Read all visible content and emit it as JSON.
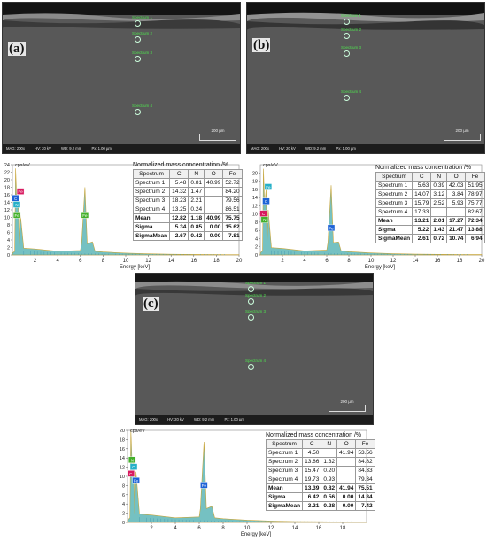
{
  "panels": [
    {
      "label": "(a)",
      "sem_info": [
        "MAG: 200x",
        "HV: 20 kV",
        "WD: 9.2 mm",
        "Px: 1.00 µm"
      ],
      "scale_bar": "200 µm",
      "spectra": [
        "Spectrum 1",
        "Spectrum 2",
        "Spectrum 3",
        "Spectrum 4"
      ],
      "table": {
        "caption": "Normalized mass concentration /%",
        "headers": [
          "Spectrum",
          "C",
          "N",
          "O",
          "Fe"
        ],
        "rows": [
          [
            "Spectrum 1",
            "5.48",
            "0.81",
            "40.99",
            "52.72"
          ],
          [
            "Spectrum 2",
            "14.32",
            "1.47",
            "",
            "84.20"
          ],
          [
            "Spectrum 3",
            "18.23",
            "2.21",
            "",
            "79.56"
          ],
          [
            "Spectrum 4",
            "13.25",
            "0.24",
            "",
            "86.51"
          ]
        ],
        "stats": [
          [
            "Mean",
            "12.82",
            "1.18",
            "40.99",
            "75.75"
          ],
          [
            "Sigma",
            "5.34",
            "0.85",
            "0.00",
            "15.62"
          ],
          [
            "SigmaMean",
            "2.67",
            "0.42",
            "0.00",
            "7.81"
          ]
        ]
      }
    },
    {
      "label": "(b)",
      "sem_info": [
        "MAG: 200x",
        "HV: 20 kV",
        "WD: 9.2 mm",
        "Px: 1.00 µm"
      ],
      "scale_bar": "200 µm",
      "spectra": [
        "Spectrum 1",
        "Spectrum 2",
        "Spectrum 3",
        "Spectrum 4"
      ],
      "table": {
        "caption": "Normalized mass concentration /%",
        "headers": [
          "Spectrum",
          "C",
          "N",
          "O",
          "Fe"
        ],
        "rows": [
          [
            "Spectrum 1",
            "5.63",
            "0.39",
            "42.03",
            "51.95"
          ],
          [
            "Spectrum 2",
            "14.07",
            "3.12",
            "3.84",
            "78.97"
          ],
          [
            "Spectrum 3",
            "15.79",
            "2.52",
            "5.93",
            "75.77"
          ],
          [
            "Spectrum 4",
            "17.33",
            "",
            "",
            "82.67"
          ]
        ],
        "stats": [
          [
            "Mean",
            "13.21",
            "2.01",
            "17.27",
            "72.34"
          ],
          [
            "Sigma",
            "5.22",
            "1.43",
            "21.47",
            "13.88"
          ],
          [
            "SigmaMean",
            "2.61",
            "0.72",
            "10.74",
            "6.94"
          ]
        ]
      }
    },
    {
      "label": "(c)",
      "sem_info": [
        "MAG: 200x",
        "HV: 20 kV",
        "WD: 9.2 mm",
        "Px: 1.00 µm"
      ],
      "scale_bar": "200 µm",
      "spectra": [
        "Spectrum 1",
        "Spectrum 2",
        "Spectrum 3",
        "Spectrum 4"
      ],
      "table": {
        "caption": "Normalized mass concentration /%",
        "headers": [
          "Spectrum",
          "C",
          "N",
          "O",
          "Fe"
        ],
        "rows": [
          [
            "Spectrum 1",
            "4.50",
            "",
            "41.94",
            "53.56"
          ],
          [
            "Spectrum 2",
            "13.86",
            "1.32",
            "",
            "84.82"
          ],
          [
            "Spectrum 3",
            "15.47",
            "0.20",
            "",
            "84.33"
          ],
          [
            "Spectrum 4",
            "19.73",
            "0.93",
            "",
            "79.34"
          ]
        ],
        "stats": [
          [
            "Mean",
            "13.39",
            "0.82",
            "41.94",
            "75.51"
          ],
          [
            "Sigma",
            "6.42",
            "0.56",
            "0.00",
            "14.84"
          ],
          [
            "SigmaMean",
            "3.21",
            "0.28",
            "0.00",
            "7.42"
          ]
        ]
      }
    }
  ],
  "chart_data": [
    {
      "type": "area",
      "panel": "(a)",
      "ylabel": "cps/eV",
      "xlabel": "Energy [keV]",
      "xlim": [
        0,
        20
      ],
      "ylim": [
        0,
        24
      ],
      "xticks": [
        2,
        4,
        6,
        8,
        10,
        12,
        14,
        16,
        18,
        20
      ],
      "yticks": [
        0,
        2,
        4,
        6,
        8,
        10,
        12,
        14,
        16,
        18,
        20,
        22,
        24
      ],
      "x": [
        0.0,
        0.2,
        0.28,
        0.39,
        0.52,
        0.6,
        0.71,
        1.0,
        2.0,
        4.0,
        6.0,
        6.1,
        6.4,
        6.6,
        7.06,
        7.3,
        8.0,
        10.0,
        12.0,
        14.0,
        16.0,
        18.0,
        20.0
      ],
      "y": [
        0.5,
        1.0,
        23.0,
        14.0,
        13.5,
        2.0,
        10.5,
        1.8,
        1.6,
        1.0,
        1.2,
        3.0,
        18.0,
        3.0,
        3.5,
        1.0,
        0.8,
        0.5,
        0.3,
        0.2,
        0.15,
        0.1,
        0.08
      ],
      "peak_labels": [
        {
          "text": "Fe",
          "x": 0.71,
          "y": 16.8,
          "color": "#d81b60"
        },
        {
          "text": "C",
          "x": 0.28,
          "y": 15.0,
          "color": "#1e63d6"
        },
        {
          "text": "N",
          "x": 0.39,
          "y": 13.3,
          "color": "#26b0c8"
        },
        {
          "text": "Fe",
          "x": 0.4,
          "y": 10.5,
          "color": "#43b02a"
        },
        {
          "text": "Fe",
          "x": 6.4,
          "y": 10.5,
          "color": "#43b02a"
        }
      ]
    },
    {
      "type": "area",
      "panel": "(b)",
      "ylabel": "cps/eV",
      "xlabel": "Energy [keV]",
      "xlim": [
        0,
        20
      ],
      "ylim": [
        0,
        22
      ],
      "xticks": [
        2,
        4,
        6,
        8,
        10,
        12,
        14,
        16,
        18,
        20
      ],
      "yticks": [
        0,
        2,
        4,
        6,
        8,
        10,
        12,
        14,
        16,
        18,
        20
      ],
      "x": [
        0.0,
        0.2,
        0.28,
        0.39,
        0.52,
        0.6,
        0.71,
        1.0,
        2.0,
        4.0,
        6.0,
        6.1,
        6.4,
        6.6,
        7.06,
        7.3,
        8.0,
        10.0,
        12.0,
        14.0,
        16.0,
        18.0,
        20.0
      ],
      "y": [
        0.5,
        1.0,
        21.0,
        12.0,
        16.0,
        2.0,
        11.0,
        1.8,
        1.6,
        1.0,
        1.2,
        3.0,
        17.0,
        3.0,
        3.2,
        1.0,
        0.8,
        0.5,
        0.3,
        0.2,
        0.15,
        0.1,
        0.08
      ],
      "peak_labels": [
        {
          "text": "Fe",
          "x": 0.71,
          "y": 16.5,
          "color": "#26b0c8"
        },
        {
          "text": "O",
          "x": 0.52,
          "y": 13.0,
          "color": "#1e63d6"
        },
        {
          "text": "C",
          "x": 0.28,
          "y": 10.0,
          "color": "#d81b60"
        },
        {
          "text": "N",
          "x": 0.39,
          "y": 8.5,
          "color": "#43b02a"
        },
        {
          "text": "Fe",
          "x": 6.4,
          "y": 6.5,
          "color": "#1e63d6"
        }
      ]
    },
    {
      "type": "area",
      "panel": "(c)",
      "ylabel": "cps/eV",
      "xlabel": "Energy [keV]",
      "xlim": [
        0,
        20
      ],
      "ylim": [
        0,
        20
      ],
      "xticks": [
        2,
        4,
        6,
        8,
        10,
        12,
        14,
        16,
        18
      ],
      "yticks": [
        0,
        2,
        4,
        6,
        8,
        10,
        12,
        14,
        16,
        18,
        20
      ],
      "x": [
        0.0,
        0.2,
        0.28,
        0.39,
        0.52,
        0.6,
        0.71,
        1.0,
        2.0,
        4.0,
        6.0,
        6.1,
        6.4,
        6.6,
        7.06,
        7.3,
        8.0,
        10.0,
        12.0,
        14.0,
        16.0,
        18.0,
        20.0
      ],
      "y": [
        0.5,
        1.0,
        20.0,
        12.0,
        13.0,
        2.0,
        11.0,
        1.8,
        1.6,
        1.0,
        1.2,
        3.0,
        17.5,
        3.0,
        3.5,
        1.0,
        0.8,
        0.5,
        0.3,
        0.2,
        0.15,
        0.1,
        0.08
      ],
      "peak_labels": [
        {
          "text": "N",
          "x": 0.39,
          "y": 13.5,
          "color": "#43b02a"
        },
        {
          "text": "O",
          "x": 0.52,
          "y": 12.0,
          "color": "#26b0c8"
        },
        {
          "text": "C",
          "x": 0.28,
          "y": 10.5,
          "color": "#d81b60"
        },
        {
          "text": "Fe",
          "x": 0.71,
          "y": 9.0,
          "color": "#1e63d6"
        },
        {
          "text": "Fe",
          "x": 6.4,
          "y": 8.0,
          "color": "#1e63d6"
        }
      ]
    }
  ]
}
